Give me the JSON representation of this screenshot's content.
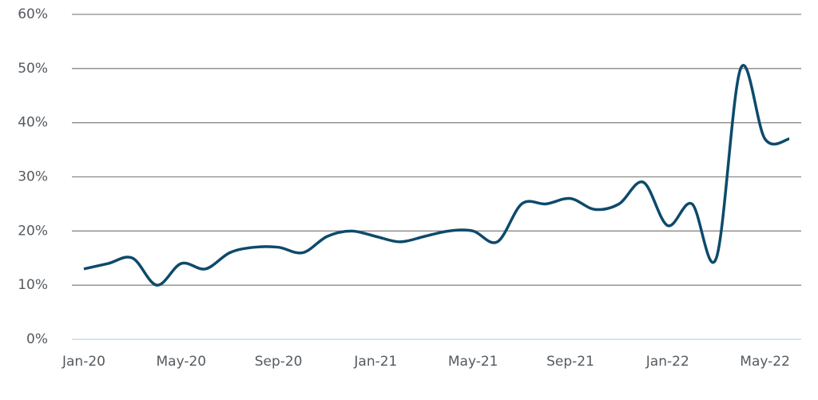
{
  "chart_data": {
    "type": "line",
    "categories": [
      "Jan-20",
      null,
      null,
      null,
      "May-20",
      null,
      null,
      null,
      "Sep-20",
      null,
      null,
      null,
      "Jan-21",
      null,
      null,
      null,
      "May-21",
      null,
      null,
      null,
      "Sep-21",
      null,
      null,
      null,
      "Jan-22",
      null,
      null,
      null,
      "May-22",
      null
    ],
    "values": [
      13,
      14,
      15,
      10,
      14,
      13,
      16,
      17,
      17,
      16,
      19,
      20,
      19,
      18,
      19,
      20,
      20,
      18,
      25,
      25,
      26,
      24,
      25,
      29,
      21,
      25,
      15,
      50,
      37,
      37
    ],
    "color": "#0d4a6b",
    "ylim": [
      0,
      60
    ],
    "yticks": [
      {
        "value": 0,
        "label": "0%"
      },
      {
        "value": 10,
        "label": "10%"
      },
      {
        "value": 20,
        "label": "20%"
      },
      {
        "value": 30,
        "label": "30%"
      },
      {
        "value": 40,
        "label": "40%"
      },
      {
        "value": 50,
        "label": "50%"
      },
      {
        "value": 60,
        "label": "60%"
      }
    ],
    "grid": true
  }
}
